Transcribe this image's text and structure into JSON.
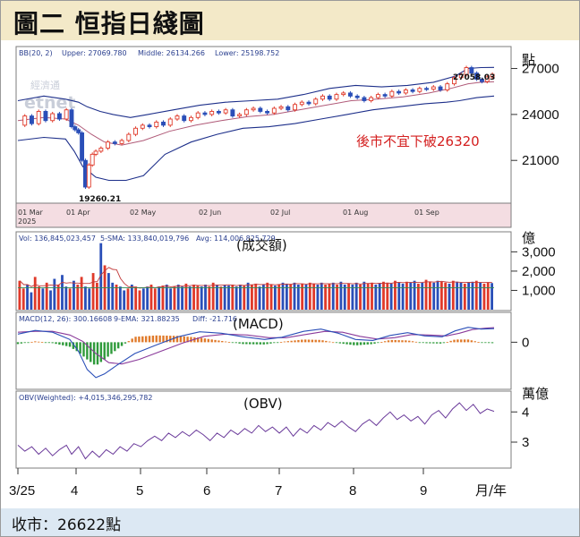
{
  "title": "圖二  恒指日綫圖",
  "footer": "收市：26622點",
  "colors": {
    "up": "#e03a2a",
    "down": "#2a4fb8",
    "band": "#1d2f8a",
    "middle": "#b05a78",
    "header_bg": "#f3e9c8",
    "footer_bg": "#dce8f3",
    "date_strip": "#f4dde2"
  },
  "watermark": {
    "line1": "經濟通",
    "line2": "etnet"
  },
  "chart_data": [
    {
      "type": "candlestick",
      "indicator": "BB(20, 2)",
      "header": [
        "BB(20, 2)",
        "Upper: 27069.780",
        "Middle: 26134.266",
        "Lower: 25198.752"
      ],
      "unit": "點",
      "ylim": [
        18500,
        28200
      ],
      "yticks": [
        21000,
        24000,
        27000
      ],
      "ytick_labels": [
        "21000",
        "24000",
        "27000"
      ],
      "x_dates": [
        "01 Mar",
        "01 Apr",
        "02 May",
        "02 Jun",
        "02 Jul",
        "01 Aug",
        "01 Sep"
      ],
      "year_label": "2025",
      "annotations": {
        "high": "27058.03",
        "low": "19260.21",
        "note": "後市不宜下破26320"
      },
      "close_points": [
        [
          0,
          23300
        ],
        [
          8,
          23900
        ],
        [
          16,
          23400
        ],
        [
          24,
          24200
        ],
        [
          32,
          23600
        ],
        [
          40,
          24050
        ],
        [
          48,
          23700
        ],
        [
          56,
          24300
        ],
        [
          62,
          23200
        ],
        [
          66,
          23000
        ],
        [
          70,
          22800
        ],
        [
          74,
          21000
        ],
        [
          78,
          19260
        ],
        [
          82,
          20700
        ],
        [
          86,
          21400
        ],
        [
          90,
          21600
        ],
        [
          96,
          21800
        ],
        [
          104,
          22200
        ],
        [
          112,
          22100
        ],
        [
          120,
          22300
        ],
        [
          128,
          22700
        ],
        [
          136,
          23100
        ],
        [
          144,
          23300
        ],
        [
          152,
          23200
        ],
        [
          160,
          23500
        ],
        [
          168,
          23300
        ],
        [
          176,
          23700
        ],
        [
          184,
          23900
        ],
        [
          192,
          23600
        ],
        [
          200,
          23800
        ],
        [
          208,
          24100
        ],
        [
          216,
          24000
        ],
        [
          224,
          24200
        ],
        [
          232,
          24100
        ],
        [
          240,
          24300
        ],
        [
          248,
          23900
        ],
        [
          256,
          24000
        ],
        [
          264,
          24300
        ],
        [
          272,
          24400
        ],
        [
          280,
          24200
        ],
        [
          288,
          24100
        ],
        [
          296,
          24400
        ],
        [
          304,
          24500
        ],
        [
          312,
          24300
        ],
        [
          320,
          24650
        ],
        [
          328,
          24800
        ],
        [
          336,
          24700
        ],
        [
          344,
          25000
        ],
        [
          352,
          25200
        ],
        [
          360,
          25000
        ],
        [
          368,
          25300
        ],
        [
          376,
          25400
        ],
        [
          384,
          25200
        ],
        [
          392,
          25100
        ],
        [
          400,
          24900
        ],
        [
          408,
          25100
        ],
        [
          416,
          25300
        ],
        [
          424,
          25200
        ],
        [
          432,
          25500
        ],
        [
          440,
          25400
        ],
        [
          448,
          25600
        ],
        [
          456,
          25500
        ],
        [
          464,
          25700
        ],
        [
          472,
          25650
        ],
        [
          480,
          25800
        ],
        [
          488,
          25600
        ],
        [
          496,
          26000
        ],
        [
          504,
          26400
        ],
        [
          512,
          26600
        ],
        [
          518,
          27058
        ],
        [
          524,
          26700
        ],
        [
          530,
          26300
        ],
        [
          536,
          26150
        ],
        [
          542,
          26450
        ],
        [
          548,
          26622
        ]
      ],
      "upper_points": [
        [
          0,
          24900
        ],
        [
          30,
          25200
        ],
        [
          55,
          25000
        ],
        [
          70,
          24800
        ],
        [
          80,
          24500
        ],
        [
          95,
          24200
        ],
        [
          110,
          24000
        ],
        [
          130,
          23800
        ],
        [
          150,
          24000
        ],
        [
          180,
          24300
        ],
        [
          210,
          24600
        ],
        [
          240,
          24800
        ],
        [
          270,
          24900
        ],
        [
          300,
          25000
        ],
        [
          330,
          25300
        ],
        [
          360,
          25700
        ],
        [
          390,
          25900
        ],
        [
          420,
          25800
        ],
        [
          450,
          25900
        ],
        [
          480,
          26100
        ],
        [
          505,
          26500
        ],
        [
          520,
          27000
        ],
        [
          535,
          27060
        ],
        [
          550,
          27070
        ]
      ],
      "middle_points": [
        [
          0,
          23600
        ],
        [
          30,
          23800
        ],
        [
          55,
          23700
        ],
        [
          70,
          23300
        ],
        [
          85,
          22700
        ],
        [
          100,
          22200
        ],
        [
          120,
          22000
        ],
        [
          145,
          22300
        ],
        [
          175,
          22900
        ],
        [
          205,
          23300
        ],
        [
          235,
          23600
        ],
        [
          265,
          23850
        ],
        [
          295,
          24000
        ],
        [
          325,
          24300
        ],
        [
          355,
          24600
        ],
        [
          385,
          24900
        ],
        [
          415,
          25000
        ],
        [
          445,
          25150
        ],
        [
          475,
          25400
        ],
        [
          500,
          25700
        ],
        [
          520,
          26000
        ],
        [
          535,
          26100
        ],
        [
          550,
          26134
        ]
      ],
      "lower_points": [
        [
          0,
          22300
        ],
        [
          30,
          22500
        ],
        [
          55,
          22400
        ],
        [
          65,
          21600
        ],
        [
          75,
          20600
        ],
        [
          90,
          19900
        ],
        [
          105,
          19700
        ],
        [
          125,
          19700
        ],
        [
          145,
          20000
        ],
        [
          170,
          21400
        ],
        [
          200,
          22200
        ],
        [
          230,
          22700
        ],
        [
          260,
          23100
        ],
        [
          290,
          23200
        ],
        [
          320,
          23400
        ],
        [
          350,
          23700
        ],
        [
          380,
          24000
        ],
        [
          410,
          24300
        ],
        [
          440,
          24500
        ],
        [
          470,
          24700
        ],
        [
          495,
          24800
        ],
        [
          510,
          24900
        ],
        [
          530,
          25100
        ],
        [
          550,
          25200
        ]
      ]
    },
    {
      "type": "bar",
      "title": "(成交額)",
      "header": [
        "Vol: 136,845,023,457",
        "5-SMA: 133,840,019,796",
        "Avg: 114,006,825,729"
      ],
      "unit": "億",
      "ylim": [
        0,
        3900
      ],
      "yticks": [
        1000,
        2000,
        3000
      ],
      "ytick_labels": [
        "1,000",
        "2,000",
        "3,000"
      ],
      "values": [
        1500,
        1100,
        1300,
        900,
        1700,
        1200,
        1100,
        1400,
        1000,
        1600,
        1300,
        1800,
        1200,
        1100,
        1500,
        1300,
        1700,
        1200,
        1100,
        1900,
        1400,
        3450,
        2300,
        1900,
        1400,
        1300,
        1200,
        1000,
        1100,
        1300,
        1200,
        1000,
        1100,
        1200,
        1300,
        1100,
        1200,
        1250,
        1300,
        1100,
        1200,
        1300,
        1200,
        1350,
        1200,
        1300,
        1250,
        1200,
        1300,
        1200,
        1400,
        1300,
        1200,
        1300,
        1250,
        1300,
        1200,
        1300,
        1250,
        1400,
        1300,
        1350,
        1200,
        1300,
        1400,
        1300,
        1250,
        1300,
        1400,
        1350,
        1300,
        1400,
        1300,
        1350,
        1300,
        1400,
        1350,
        1300,
        1400,
        1300,
        1350,
        1400,
        1300,
        1450,
        1300,
        1350,
        1300,
        1400,
        1300,
        1450,
        1350,
        1400,
        1300,
        1350,
        1450,
        1400,
        1350,
        1500,
        1400,
        1350,
        1450,
        1400,
        1500,
        1350,
        1400,
        1550,
        1450,
        1400,
        1500,
        1450,
        1400,
        1350,
        1500,
        1450,
        1400,
        1350,
        1400,
        1450,
        1500,
        1400,
        1350,
        1400,
        1380
      ]
    },
    {
      "type": "line+histogram",
      "title": "(MACD)",
      "header": [
        "MACD(12, 26): 300.16608",
        "9-EMA: 321.88235",
        "Diff: -21.716"
      ],
      "ylim": [
        -1000,
        600
      ],
      "yticks": [
        0
      ],
      "ytick_labels": [
        "0"
      ],
      "macd_points": [
        [
          0,
          180
        ],
        [
          20,
          260
        ],
        [
          40,
          220
        ],
        [
          60,
          60
        ],
        [
          70,
          -200
        ],
        [
          80,
          -600
        ],
        [
          90,
          -780
        ],
        [
          100,
          -700
        ],
        [
          115,
          -500
        ],
        [
          135,
          -250
        ],
        [
          160,
          -60
        ],
        [
          185,
          120
        ],
        [
          210,
          230
        ],
        [
          235,
          200
        ],
        [
          260,
          120
        ],
        [
          285,
          60
        ],
        [
          305,
          110
        ],
        [
          330,
          240
        ],
        [
          350,
          290
        ],
        [
          370,
          200
        ],
        [
          390,
          60
        ],
        [
          410,
          40
        ],
        [
          430,
          150
        ],
        [
          450,
          210
        ],
        [
          470,
          140
        ],
        [
          490,
          120
        ],
        [
          505,
          250
        ],
        [
          520,
          330
        ],
        [
          535,
          290
        ],
        [
          550,
          300
        ]
      ],
      "ema_points": [
        [
          0,
          220
        ],
        [
          20,
          240
        ],
        [
          40,
          240
        ],
        [
          60,
          160
        ],
        [
          75,
          20
        ],
        [
          90,
          -250
        ],
        [
          105,
          -450
        ],
        [
          120,
          -480
        ],
        [
          140,
          -380
        ],
        [
          165,
          -200
        ],
        [
          190,
          -20
        ],
        [
          215,
          130
        ],
        [
          240,
          180
        ],
        [
          265,
          160
        ],
        [
          290,
          100
        ],
        [
          310,
          100
        ],
        [
          335,
          180
        ],
        [
          355,
          240
        ],
        [
          375,
          220
        ],
        [
          395,
          130
        ],
        [
          415,
          70
        ],
        [
          435,
          100
        ],
        [
          455,
          170
        ],
        [
          475,
          160
        ],
        [
          495,
          140
        ],
        [
          510,
          200
        ],
        [
          525,
          280
        ],
        [
          540,
          310
        ],
        [
          550,
          322
        ]
      ],
      "diff_points": [
        [
          0,
          -40
        ],
        [
          20,
          20
        ],
        [
          40,
          -20
        ],
        [
          60,
          -100
        ],
        [
          70,
          -220
        ],
        [
          80,
          -380
        ],
        [
          90,
          -520
        ],
        [
          100,
          -380
        ],
        [
          115,
          -150
        ],
        [
          135,
          120
        ],
        [
          160,
          150
        ],
        [
          185,
          140
        ],
        [
          210,
          100
        ],
        [
          235,
          30
        ],
        [
          260,
          -40
        ],
        [
          285,
          -50
        ],
        [
          305,
          10
        ],
        [
          330,
          60
        ],
        [
          350,
          50
        ],
        [
          370,
          -20
        ],
        [
          390,
          -70
        ],
        [
          410,
          -40
        ],
        [
          430,
          50
        ],
        [
          450,
          40
        ],
        [
          470,
          -20
        ],
        [
          490,
          -30
        ],
        [
          505,
          60
        ],
        [
          520,
          60
        ],
        [
          535,
          -10
        ],
        [
          550,
          -22
        ]
      ]
    },
    {
      "type": "line",
      "title": "(OBV)",
      "header": [
        "OBV(Weighted): +4,015,346,295,782"
      ],
      "unit": "萬億",
      "ylim": [
        2.2,
        4.6
      ],
      "yticks": [
        3,
        4
      ],
      "ytick_labels": [
        "3",
        "4"
      ],
      "points": [
        [
          0,
          2.9
        ],
        [
          8,
          2.7
        ],
        [
          16,
          2.85
        ],
        [
          24,
          2.6
        ],
        [
          32,
          2.8
        ],
        [
          40,
          2.55
        ],
        [
          48,
          2.75
        ],
        [
          56,
          2.9
        ],
        [
          62,
          2.6
        ],
        [
          70,
          2.85
        ],
        [
          78,
          2.45
        ],
        [
          86,
          2.7
        ],
        [
          94,
          2.5
        ],
        [
          102,
          2.75
        ],
        [
          110,
          2.6
        ],
        [
          118,
          2.85
        ],
        [
          126,
          2.7
        ],
        [
          134,
          2.95
        ],
        [
          142,
          2.85
        ],
        [
          150,
          3.05
        ],
        [
          158,
          3.2
        ],
        [
          166,
          3.05
        ],
        [
          174,
          3.3
        ],
        [
          182,
          3.15
        ],
        [
          190,
          3.35
        ],
        [
          198,
          3.2
        ],
        [
          206,
          3.4
        ],
        [
          214,
          3.25
        ],
        [
          222,
          3.05
        ],
        [
          230,
          3.3
        ],
        [
          238,
          3.15
        ],
        [
          246,
          3.4
        ],
        [
          254,
          3.25
        ],
        [
          262,
          3.45
        ],
        [
          270,
          3.3
        ],
        [
          278,
          3.55
        ],
        [
          286,
          3.35
        ],
        [
          294,
          3.5
        ],
        [
          302,
          3.3
        ],
        [
          310,
          3.5
        ],
        [
          318,
          3.2
        ],
        [
          326,
          3.45
        ],
        [
          334,
          3.3
        ],
        [
          342,
          3.55
        ],
        [
          350,
          3.4
        ],
        [
          358,
          3.65
        ],
        [
          366,
          3.5
        ],
        [
          374,
          3.7
        ],
        [
          382,
          3.5
        ],
        [
          390,
          3.35
        ],
        [
          398,
          3.6
        ],
        [
          406,
          3.75
        ],
        [
          414,
          3.55
        ],
        [
          422,
          3.8
        ],
        [
          430,
          4.0
        ],
        [
          438,
          3.75
        ],
        [
          446,
          3.9
        ],
        [
          454,
          3.7
        ],
        [
          462,
          3.85
        ],
        [
          470,
          3.6
        ],
        [
          478,
          3.9
        ],
        [
          486,
          4.05
        ],
        [
          494,
          3.8
        ],
        [
          502,
          4.1
        ],
        [
          510,
          4.3
        ],
        [
          518,
          4.05
        ],
        [
          526,
          4.25
        ],
        [
          534,
          3.95
        ],
        [
          542,
          4.1
        ],
        [
          550,
          4.02
        ]
      ]
    }
  ],
  "bottom_axis": {
    "labels": [
      "3/25",
      "4",
      "5",
      "6",
      "7",
      "8",
      "9"
    ],
    "unit": "月/年"
  }
}
